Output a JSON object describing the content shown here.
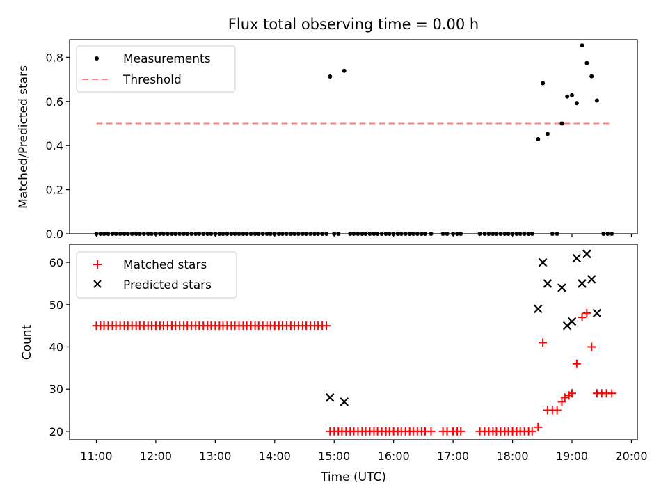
{
  "figure": {
    "title": "Flux total observing time = 0.00 h"
  },
  "chart_data": [
    {
      "type": "scatter",
      "ylabel": "Matched/Predicted stars",
      "ylim": [
        0,
        0.88
      ],
      "yticks": [
        0.0,
        0.2,
        0.4,
        0.6,
        0.8
      ],
      "ytick_labels": [
        "0.0",
        "0.2",
        "0.4",
        "0.6",
        "0.8"
      ],
      "xlim_hours": [
        10.55,
        20.1
      ],
      "legend": {
        "placement": "top-left",
        "entries": [
          "Measurements",
          "Threshold"
        ]
      },
      "threshold": {
        "name": "Threshold",
        "value": 0.5,
        "x_range_hours": [
          11.0,
          19.65
        ],
        "color": "#ff7f7f"
      },
      "series": [
        {
          "name": "Measurements",
          "color": "#000000",
          "points": [
            [
              11.0,
              0
            ],
            [
              11.07,
              0
            ],
            [
              11.13,
              0
            ],
            [
              11.2,
              0
            ],
            [
              11.27,
              0
            ],
            [
              11.33,
              0
            ],
            [
              11.4,
              0
            ],
            [
              11.47,
              0
            ],
            [
              11.53,
              0
            ],
            [
              11.6,
              0
            ],
            [
              11.67,
              0
            ],
            [
              11.73,
              0
            ],
            [
              11.8,
              0
            ],
            [
              11.87,
              0
            ],
            [
              11.93,
              0
            ],
            [
              12.0,
              0
            ],
            [
              12.07,
              0
            ],
            [
              12.13,
              0
            ],
            [
              12.2,
              0
            ],
            [
              12.27,
              0
            ],
            [
              12.33,
              0
            ],
            [
              12.4,
              0
            ],
            [
              12.47,
              0
            ],
            [
              12.53,
              0
            ],
            [
              12.6,
              0
            ],
            [
              12.67,
              0
            ],
            [
              12.73,
              0
            ],
            [
              12.8,
              0
            ],
            [
              12.87,
              0
            ],
            [
              12.93,
              0
            ],
            [
              13.0,
              0
            ],
            [
              13.07,
              0
            ],
            [
              13.13,
              0
            ],
            [
              13.2,
              0
            ],
            [
              13.27,
              0
            ],
            [
              13.33,
              0
            ],
            [
              13.4,
              0
            ],
            [
              13.47,
              0
            ],
            [
              13.53,
              0
            ],
            [
              13.6,
              0
            ],
            [
              13.67,
              0
            ],
            [
              13.73,
              0
            ],
            [
              13.8,
              0
            ],
            [
              13.87,
              0
            ],
            [
              13.93,
              0
            ],
            [
              14.0,
              0
            ],
            [
              14.07,
              0
            ],
            [
              14.13,
              0
            ],
            [
              14.2,
              0
            ],
            [
              14.27,
              0
            ],
            [
              14.33,
              0
            ],
            [
              14.4,
              0
            ],
            [
              14.47,
              0
            ],
            [
              14.53,
              0
            ],
            [
              14.6,
              0
            ],
            [
              14.67,
              0
            ],
            [
              14.73,
              0
            ],
            [
              14.8,
              0
            ],
            [
              14.87,
              0
            ],
            [
              14.93,
              0.713
            ],
            [
              15.0,
              0
            ],
            [
              15.07,
              0
            ],
            [
              15.17,
              0.739
            ],
            [
              15.27,
              0
            ],
            [
              15.33,
              0
            ],
            [
              15.4,
              0
            ],
            [
              15.47,
              0
            ],
            [
              15.53,
              0
            ],
            [
              15.6,
              0
            ],
            [
              15.67,
              0
            ],
            [
              15.73,
              0
            ],
            [
              15.8,
              0
            ],
            [
              15.87,
              0
            ],
            [
              15.93,
              0
            ],
            [
              16.0,
              0
            ],
            [
              16.07,
              0
            ],
            [
              16.13,
              0
            ],
            [
              16.2,
              0
            ],
            [
              16.27,
              0
            ],
            [
              16.33,
              0
            ],
            [
              16.4,
              0
            ],
            [
              16.47,
              0
            ],
            [
              16.53,
              0
            ],
            [
              16.63,
              0
            ],
            [
              16.83,
              0
            ],
            [
              16.9,
              0
            ],
            [
              17.0,
              0
            ],
            [
              17.07,
              0
            ],
            [
              17.13,
              0
            ],
            [
              17.45,
              0
            ],
            [
              17.53,
              0
            ],
            [
              17.6,
              0
            ],
            [
              17.67,
              0
            ],
            [
              17.73,
              0
            ],
            [
              17.8,
              0
            ],
            [
              17.87,
              0
            ],
            [
              17.93,
              0
            ],
            [
              18.0,
              0
            ],
            [
              18.07,
              0
            ],
            [
              18.13,
              0
            ],
            [
              18.2,
              0
            ],
            [
              18.27,
              0
            ],
            [
              18.33,
              0
            ],
            [
              18.43,
              0.429
            ],
            [
              18.51,
              0.683
            ],
            [
              18.59,
              0.453
            ],
            [
              18.67,
              0
            ],
            [
              18.75,
              0
            ],
            [
              18.83,
              0.5
            ],
            [
              18.92,
              0.622
            ],
            [
              19.0,
              0.628
            ],
            [
              19.08,
              0.592
            ],
            [
              19.17,
              0.854
            ],
            [
              19.25,
              0.774
            ],
            [
              19.33,
              0.714
            ],
            [
              19.42,
              0.604
            ],
            [
              19.53,
              0
            ],
            [
              19.6,
              0
            ],
            [
              19.67,
              0
            ]
          ]
        }
      ]
    },
    {
      "type": "scatter",
      "xlabel": "Time (UTC)",
      "ylabel": "Count",
      "ylim": [
        18,
        64.3
      ],
      "yticks": [
        20,
        30,
        40,
        50,
        60
      ],
      "ytick_labels": [
        "20",
        "30",
        "40",
        "50",
        "60"
      ],
      "xlim_hours": [
        10.55,
        20.1
      ],
      "xticks_hours": [
        11,
        12,
        13,
        14,
        15,
        16,
        17,
        18,
        19,
        20
      ],
      "xtick_labels": [
        "11:00",
        "12:00",
        "13:00",
        "14:00",
        "15:00",
        "16:00",
        "17:00",
        "18:00",
        "19:00",
        "20:00"
      ],
      "legend": {
        "placement": "top-left",
        "entries": [
          "Matched stars",
          "Predicted stars"
        ]
      },
      "series": [
        {
          "name": "Matched stars",
          "marker": "plus",
          "color": "#ff0000",
          "points": [
            [
              11.0,
              45
            ],
            [
              11.07,
              45
            ],
            [
              11.13,
              45
            ],
            [
              11.2,
              45
            ],
            [
              11.27,
              45
            ],
            [
              11.33,
              45
            ],
            [
              11.4,
              45
            ],
            [
              11.47,
              45
            ],
            [
              11.53,
              45
            ],
            [
              11.6,
              45
            ],
            [
              11.67,
              45
            ],
            [
              11.73,
              45
            ],
            [
              11.8,
              45
            ],
            [
              11.87,
              45
            ],
            [
              11.93,
              45
            ],
            [
              12.0,
              45
            ],
            [
              12.07,
              45
            ],
            [
              12.13,
              45
            ],
            [
              12.2,
              45
            ],
            [
              12.27,
              45
            ],
            [
              12.33,
              45
            ],
            [
              12.4,
              45
            ],
            [
              12.47,
              45
            ],
            [
              12.53,
              45
            ],
            [
              12.6,
              45
            ],
            [
              12.67,
              45
            ],
            [
              12.73,
              45
            ],
            [
              12.8,
              45
            ],
            [
              12.87,
              45
            ],
            [
              12.93,
              45
            ],
            [
              13.0,
              45
            ],
            [
              13.07,
              45
            ],
            [
              13.13,
              45
            ],
            [
              13.2,
              45
            ],
            [
              13.27,
              45
            ],
            [
              13.33,
              45
            ],
            [
              13.4,
              45
            ],
            [
              13.47,
              45
            ],
            [
              13.53,
              45
            ],
            [
              13.6,
              45
            ],
            [
              13.67,
              45
            ],
            [
              13.73,
              45
            ],
            [
              13.8,
              45
            ],
            [
              13.87,
              45
            ],
            [
              13.93,
              45
            ],
            [
              14.0,
              45
            ],
            [
              14.07,
              45
            ],
            [
              14.13,
              45
            ],
            [
              14.2,
              45
            ],
            [
              14.27,
              45
            ],
            [
              14.33,
              45
            ],
            [
              14.4,
              45
            ],
            [
              14.47,
              45
            ],
            [
              14.53,
              45
            ],
            [
              14.6,
              45
            ],
            [
              14.67,
              45
            ],
            [
              14.73,
              45
            ],
            [
              14.8,
              45
            ],
            [
              14.87,
              45
            ],
            [
              14.93,
              20
            ],
            [
              15.0,
              20
            ],
            [
              15.07,
              20
            ],
            [
              15.13,
              20
            ],
            [
              15.2,
              20
            ],
            [
              15.27,
              20
            ],
            [
              15.33,
              20
            ],
            [
              15.4,
              20
            ],
            [
              15.47,
              20
            ],
            [
              15.53,
              20
            ],
            [
              15.6,
              20
            ],
            [
              15.67,
              20
            ],
            [
              15.73,
              20
            ],
            [
              15.8,
              20
            ],
            [
              15.87,
              20
            ],
            [
              15.93,
              20
            ],
            [
              16.0,
              20
            ],
            [
              16.07,
              20
            ],
            [
              16.13,
              20
            ],
            [
              16.2,
              20
            ],
            [
              16.27,
              20
            ],
            [
              16.33,
              20
            ],
            [
              16.4,
              20
            ],
            [
              16.47,
              20
            ],
            [
              16.53,
              20
            ],
            [
              16.63,
              20
            ],
            [
              16.83,
              20
            ],
            [
              16.9,
              20
            ],
            [
              17.0,
              20
            ],
            [
              17.07,
              20
            ],
            [
              17.13,
              20
            ],
            [
              17.45,
              20
            ],
            [
              17.53,
              20
            ],
            [
              17.6,
              20
            ],
            [
              17.67,
              20
            ],
            [
              17.73,
              20
            ],
            [
              17.8,
              20
            ],
            [
              17.87,
              20
            ],
            [
              17.93,
              20
            ],
            [
              18.0,
              20
            ],
            [
              18.07,
              20
            ],
            [
              18.13,
              20
            ],
            [
              18.2,
              20
            ],
            [
              18.27,
              20
            ],
            [
              18.33,
              20
            ],
            [
              18.43,
              21
            ],
            [
              18.51,
              41
            ],
            [
              18.59,
              25
            ],
            [
              18.67,
              25
            ],
            [
              18.75,
              25
            ],
            [
              18.83,
              27
            ],
            [
              18.88,
              28
            ],
            [
              18.95,
              28.5
            ],
            [
              19.0,
              29
            ],
            [
              19.08,
              36
            ],
            [
              19.17,
              47
            ],
            [
              19.25,
              48
            ],
            [
              19.33,
              40
            ],
            [
              19.42,
              29
            ],
            [
              19.5,
              29
            ],
            [
              19.58,
              29
            ],
            [
              19.67,
              29
            ]
          ]
        },
        {
          "name": "Predicted stars",
          "marker": "x",
          "color": "#000000",
          "points": [
            [
              14.93,
              28
            ],
            [
              15.17,
              27
            ],
            [
              18.43,
              49
            ],
            [
              18.51,
              60
            ],
            [
              18.59,
              55
            ],
            [
              18.83,
              54
            ],
            [
              18.92,
              45
            ],
            [
              19.0,
              46
            ],
            [
              19.08,
              61
            ],
            [
              19.17,
              55
            ],
            [
              19.25,
              62
            ],
            [
              19.33,
              56
            ],
            [
              19.42,
              48
            ]
          ]
        }
      ]
    }
  ]
}
